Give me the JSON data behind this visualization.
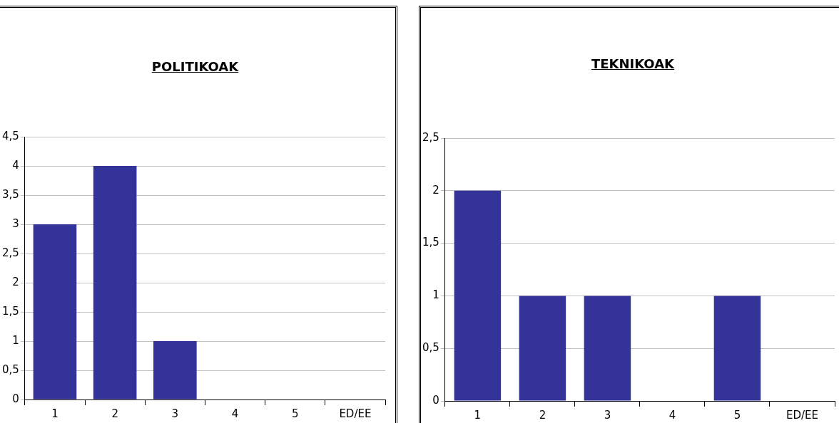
{
  "chart_data": [
    {
      "type": "bar",
      "title": "POLITIKOAK",
      "categories": [
        "1",
        "2",
        "3",
        "4",
        "5",
        "ED/EE"
      ],
      "values": [
        3,
        4,
        1,
        0,
        0,
        0
      ],
      "color": "#333399",
      "ylim": [
        0,
        4.5
      ],
      "yticks": [
        0,
        {
          "value": 0.5,
          "label": "0,5"
        },
        1,
        {
          "value": 1.5,
          "label": "1,5"
        },
        2,
        {
          "value": 2.5,
          "label": "2,5"
        },
        3,
        {
          "value": 3.5,
          "label": "3,5"
        },
        4,
        {
          "value": 4.5,
          "label": "4,5"
        }
      ],
      "grid": "y",
      "legend": false
    },
    {
      "type": "bar",
      "title": "TEKNIKOAK",
      "categories": [
        "1",
        "2",
        "3",
        "4",
        "5",
        "ED/EE"
      ],
      "values": [
        2,
        1,
        1,
        0,
        1,
        0
      ],
      "color": "#333399",
      "ylim": [
        0,
        2.5
      ],
      "yticks": [
        0,
        {
          "value": 0.5,
          "label": "0,5"
        },
        1,
        {
          "value": 1.5,
          "label": "1,5"
        },
        2,
        {
          "value": 2.5,
          "label": "2,5"
        }
      ],
      "grid": "y",
      "legend": false
    }
  ]
}
